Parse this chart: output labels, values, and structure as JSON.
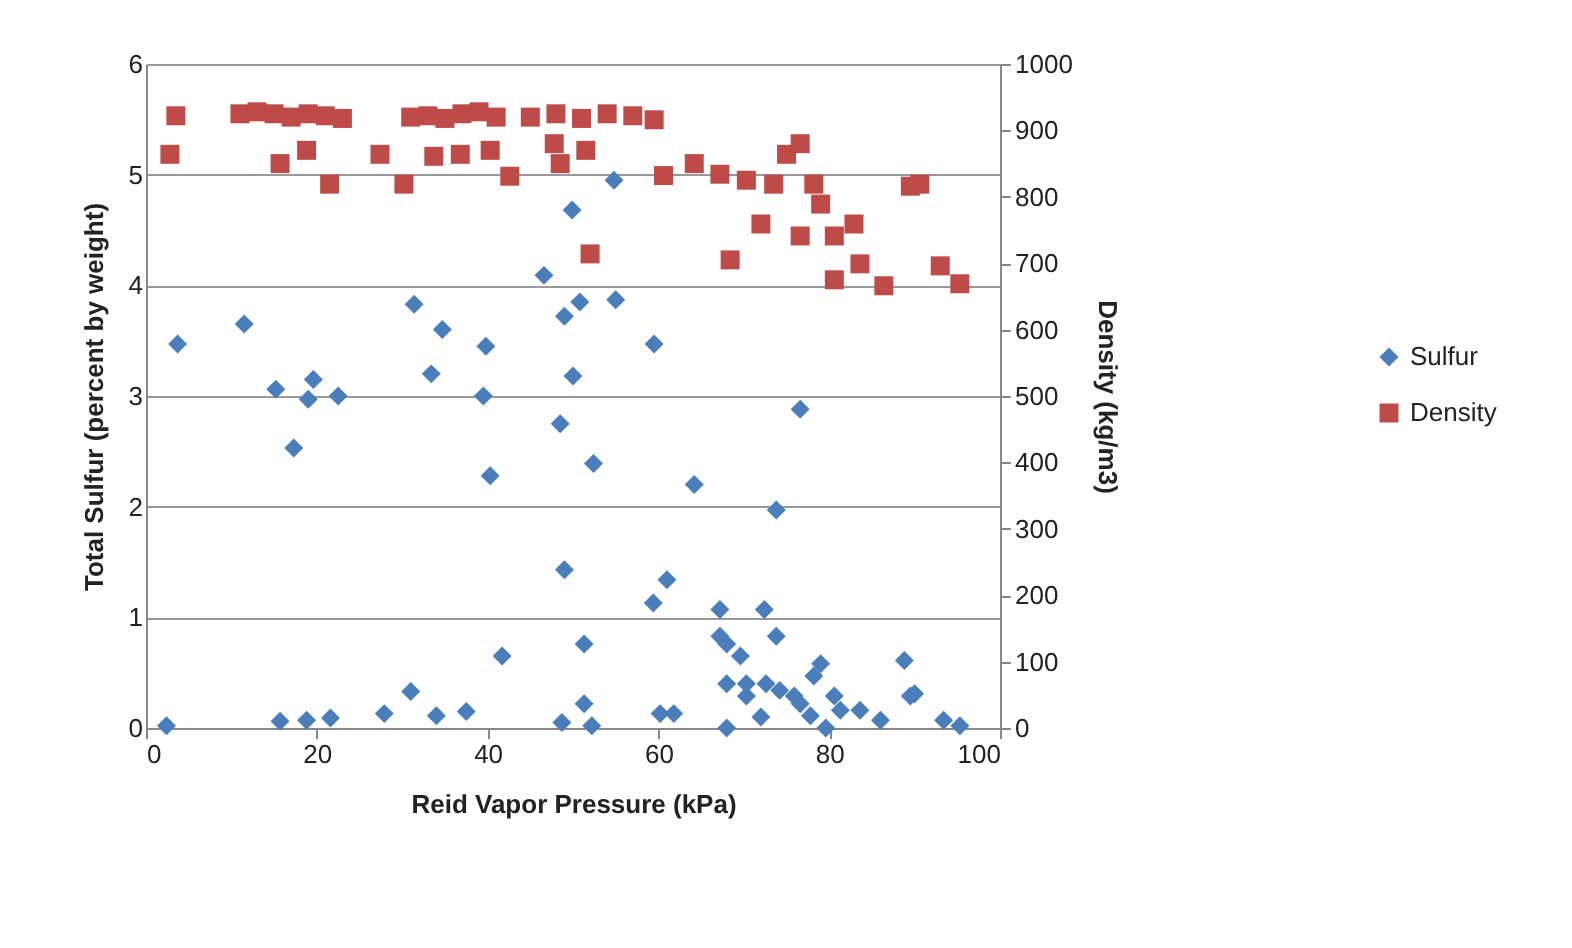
{
  "chart_data": {
    "type": "scatter",
    "xlabel": "Reid Vapor Pressure (kPa)",
    "ylabel": "Total Sulfur (percent by weight)",
    "y2label": "Density (kg/m3)",
    "xlim": [
      0,
      100
    ],
    "xticks": [
      0,
      20,
      40,
      60,
      80,
      100
    ],
    "ylim": [
      0,
      6
    ],
    "yticks": [
      0,
      1,
      2,
      3,
      4,
      5,
      6
    ],
    "y2lim": [
      0,
      1000
    ],
    "y2ticks": [
      0,
      100,
      200,
      300,
      400,
      500,
      600,
      700,
      800,
      900,
      1000
    ],
    "grid": "y",
    "legend": "right",
    "series": [
      {
        "name": "Sulfur",
        "color": "#4a7ebb",
        "marker": "diamond",
        "x": [
          3.7,
          11.5,
          31.4,
          34.7,
          39.8,
          33.4,
          39.5,
          50,
          48.5,
          46.6,
          49,
          50.8,
          55,
          59.5,
          49.9,
          54.8,
          15.2,
          19.6,
          19,
          22.5,
          17.3,
          40.3,
          52.4,
          49,
          61,
          59.4,
          51.3,
          41.7,
          31,
          2.4,
          15.7,
          18.8,
          21.6,
          27.9,
          34,
          37.5,
          48.7,
          51.3,
          52.2,
          60.2,
          61.8,
          76.6,
          64.2,
          73.8,
          67.2,
          72.4,
          67.2,
          68,
          73.8,
          69.6,
          79,
          78.2,
          88.8,
          68,
          70.3,
          74.2,
          72.6,
          76.6,
          75.9,
          80.6,
          81.3,
          89.5,
          90,
          83.6,
          86,
          79.6,
          68,
          72,
          93.4,
          95.3,
          70.3,
          77.8
        ],
        "values": [
          3.47,
          3.65,
          3.83,
          3.6,
          3.45,
          3.2,
          3.0,
          3.18,
          2.75,
          4.09,
          3.72,
          3.85,
          3.87,
          3.47,
          4.68,
          4.95,
          3.06,
          3.15,
          2.97,
          3.0,
          2.53,
          2.28,
          2.39,
          1.43,
          1.34,
          1.13,
          0.76,
          0.65,
          0.33,
          0.02,
          0.06,
          0.07,
          0.09,
          0.13,
          0.11,
          0.15,
          0.05,
          0.22,
          0.02,
          0.13,
          0.13,
          2.88,
          2.2,
          1.97,
          1.07,
          1.07,
          0.83,
          0.76,
          0.83,
          0.65,
          0.58,
          0.47,
          0.61,
          0.4,
          0.4,
          0.34,
          0.4,
          0.22,
          0.29,
          0.29,
          0.16,
          0.29,
          0.31,
          0.16,
          0.07,
          0.0,
          0.0,
          0.1,
          0.07,
          0.02,
          0.29,
          0.11
        ]
      },
      {
        "name": "Density",
        "color": "#be4b48",
        "marker": "square",
        "axis": "y2",
        "x": [
          3.5,
          2.8,
          11,
          13,
          15,
          17,
          19,
          21,
          23,
          15.7,
          21.5,
          18.8,
          27.4,
          30.2,
          31,
          33,
          35,
          37,
          39,
          41,
          33.7,
          36.8,
          40.3,
          42.6,
          45,
          48,
          51,
          54,
          57,
          47.8,
          48.5,
          51.5,
          52,
          59.5,
          60.6,
          64.2,
          67.2,
          70.3,
          72,
          75,
          76.6,
          78.2,
          68.4,
          76.6,
          80.6,
          82.9,
          80.6,
          83.6,
          86.4,
          89.5,
          90.6,
          93,
          95.3,
          79,
          73.5
        ],
        "values": [
          922,
          864,
          925,
          928,
          925,
          920,
          925,
          922,
          918,
          850,
          819,
          870,
          864,
          819,
          920,
          922,
          918,
          925,
          928,
          920,
          861,
          864,
          870,
          831,
          920,
          925,
          918,
          925,
          922,
          880,
          850,
          870,
          714,
          916,
          832,
          850,
          834,
          825,
          759,
          864,
          880,
          819,
          705,
          741,
          741,
          759,
          675,
          699,
          666,
          816,
          819,
          696,
          669,
          789,
          819
        ]
      }
    ]
  }
}
